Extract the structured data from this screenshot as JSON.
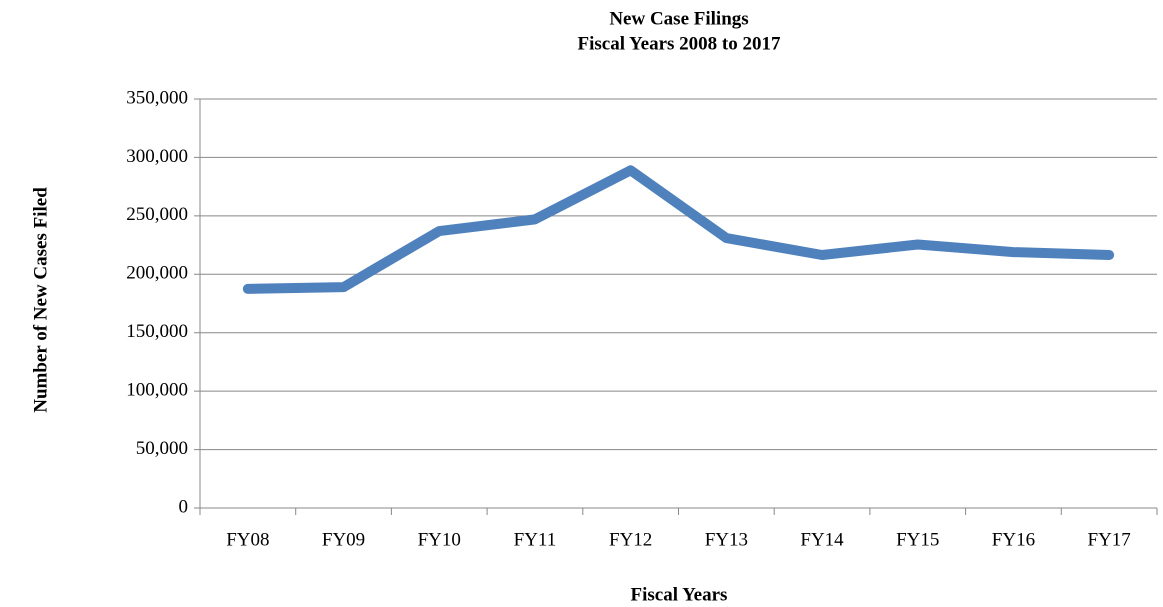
{
  "chart_data": {
    "type": "line",
    "title": "New Case Filings",
    "subtitle": "Fiscal Years 2008 to 2017",
    "x_label": "Fiscal Years",
    "y_label": "Number of New Cases Filed",
    "categories": [
      "FY08",
      "FY09",
      "FY10",
      "FY11",
      "FY12",
      "FY13",
      "FY14",
      "FY15",
      "FY16",
      "FY17"
    ],
    "series": [
      {
        "name": "New Case Filings",
        "color": "#4f81bd",
        "values": [
          187500,
          189000,
          237000,
          247000,
          289000,
          231000,
          216500,
          225500,
          219000,
          216500
        ]
      }
    ],
    "ylim": [
      0,
      350000
    ],
    "yticks": [
      0,
      {
        "value": 50000,
        "label": "50,000"
      },
      {
        "value": 100000,
        "label": "100,000"
      },
      {
        "value": 150000,
        "label": "150,000"
      },
      {
        "value": 200000,
        "label": "200,000"
      },
      {
        "value": 250000,
        "label": "250,000"
      },
      {
        "value": 300000,
        "label": "300,000"
      },
      {
        "value": 350000,
        "label": "350,000"
      }
    ],
    "grid": true
  }
}
